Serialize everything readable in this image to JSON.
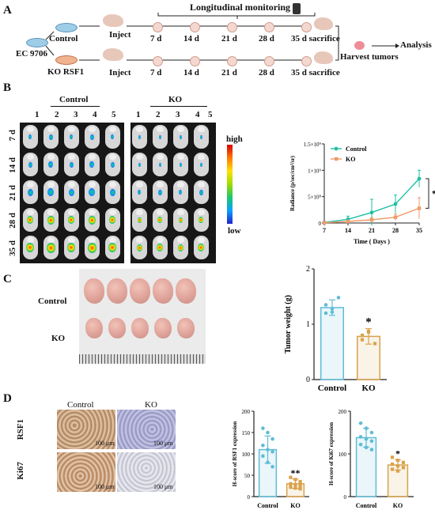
{
  "panels": {
    "a": "A",
    "b": "B",
    "c": "C",
    "d": "D"
  },
  "panelA": {
    "cell_line": "EC 9706",
    "control": "Control",
    "ko": "KO RSF1",
    "inject": "Inject",
    "monitoring": "Longitudinal monitoring",
    "days": [
      "7 d",
      "14 d",
      "21 d",
      "28 d",
      "35 d sacrifice"
    ],
    "harvest": "Harvest tumors",
    "analysis": "Analysis"
  },
  "panelB": {
    "control": "Control",
    "ko": "KO",
    "mouse_numbers": [
      "1",
      "2",
      "3",
      "4",
      "5"
    ],
    "rows": [
      "7 d",
      "14 d",
      "21 d",
      "28 d",
      "35 d"
    ],
    "scale_high": "high",
    "scale_low": "low"
  },
  "panelC": {
    "control": "Control",
    "ko": "KO"
  },
  "panelD": {
    "control": "Control",
    "ko": "KO",
    "rsf1": "RSF1",
    "ki67": "Ki67",
    "scale": "100 μm"
  },
  "colors": {
    "control": "#1fbfa6",
    "ko": "#ef9a6a",
    "weight_control": "#5fbcd6",
    "weight_ko": "#d9a24a"
  },
  "chart_data": [
    {
      "type": "line",
      "x": [
        7,
        14,
        21,
        28,
        35
      ],
      "xlim": [
        7,
        35
      ],
      "ylim": [
        0,
        1500000000
      ],
      "xlabel": "Time ( Days )",
      "ylabel": "Radiance (p/sec/cm²/sr)",
      "xticks": [
        "7",
        "14",
        "21",
        "28",
        "35"
      ],
      "yticks": [
        "0",
        "5×10⁸",
        "1×10⁹",
        "1.5×10⁹"
      ],
      "series": [
        {
          "name": "Control",
          "values": [
            10000000,
            70000000,
            200000000,
            360000000,
            840000000
          ],
          "errors": [
            5000000,
            60000000,
            250000000,
            170000000,
            160000000
          ]
        },
        {
          "name": "KO",
          "values": [
            5000000,
            30000000,
            60000000,
            110000000,
            280000000
          ],
          "errors": [
            3000000,
            15000000,
            40000000,
            60000000,
            200000000
          ]
        }
      ],
      "legend": "top-left",
      "annotation": "*"
    },
    {
      "type": "bar",
      "categories": [
        "Control",
        "KO"
      ],
      "values": [
        1.3,
        0.78
      ],
      "errors": [
        0.14,
        0.14
      ],
      "points": [
        [
          1.35,
          1.22,
          1.48,
          1.2,
          1.28
        ],
        [
          0.72,
          0.87,
          0.65,
          0.8,
          0.86
        ]
      ],
      "ylabel": "Tumor weight (g)",
      "ylim": [
        0,
        2
      ],
      "yticks": [
        "0",
        "1",
        "2"
      ],
      "annotation": "*"
    },
    {
      "type": "bar",
      "categories": [
        "Control",
        "KO"
      ],
      "values": [
        110,
        30
      ],
      "errors": [
        32,
        11
      ],
      "points": [
        [
          160,
          150,
          135,
          120,
          110,
          105,
          95,
          80,
          70
        ],
        [
          45,
          40,
          35,
          30,
          28,
          25,
          22,
          20,
          18
        ]
      ],
      "ylabel": "H-score of RSF1 expression",
      "ylim": [
        0,
        200
      ],
      "yticks": [
        "0",
        "50",
        "100",
        "150",
        "200"
      ],
      "annotation": "**"
    },
    {
      "type": "bar",
      "categories": [
        "Control",
        "KO"
      ],
      "values": [
        138,
        74
      ],
      "errors": [
        22,
        12
      ],
      "points": [
        [
          172,
          160,
          150,
          140,
          135,
          130,
          122,
          115,
          110
        ],
        [
          92,
          85,
          80,
          76,
          72,
          68,
          64,
          60
        ]
      ],
      "ylabel": "H-score of Ki67 expression",
      "ylim": [
        0,
        200
      ],
      "yticks": [
        "0",
        "100",
        "200"
      ],
      "annotation": "*"
    }
  ]
}
